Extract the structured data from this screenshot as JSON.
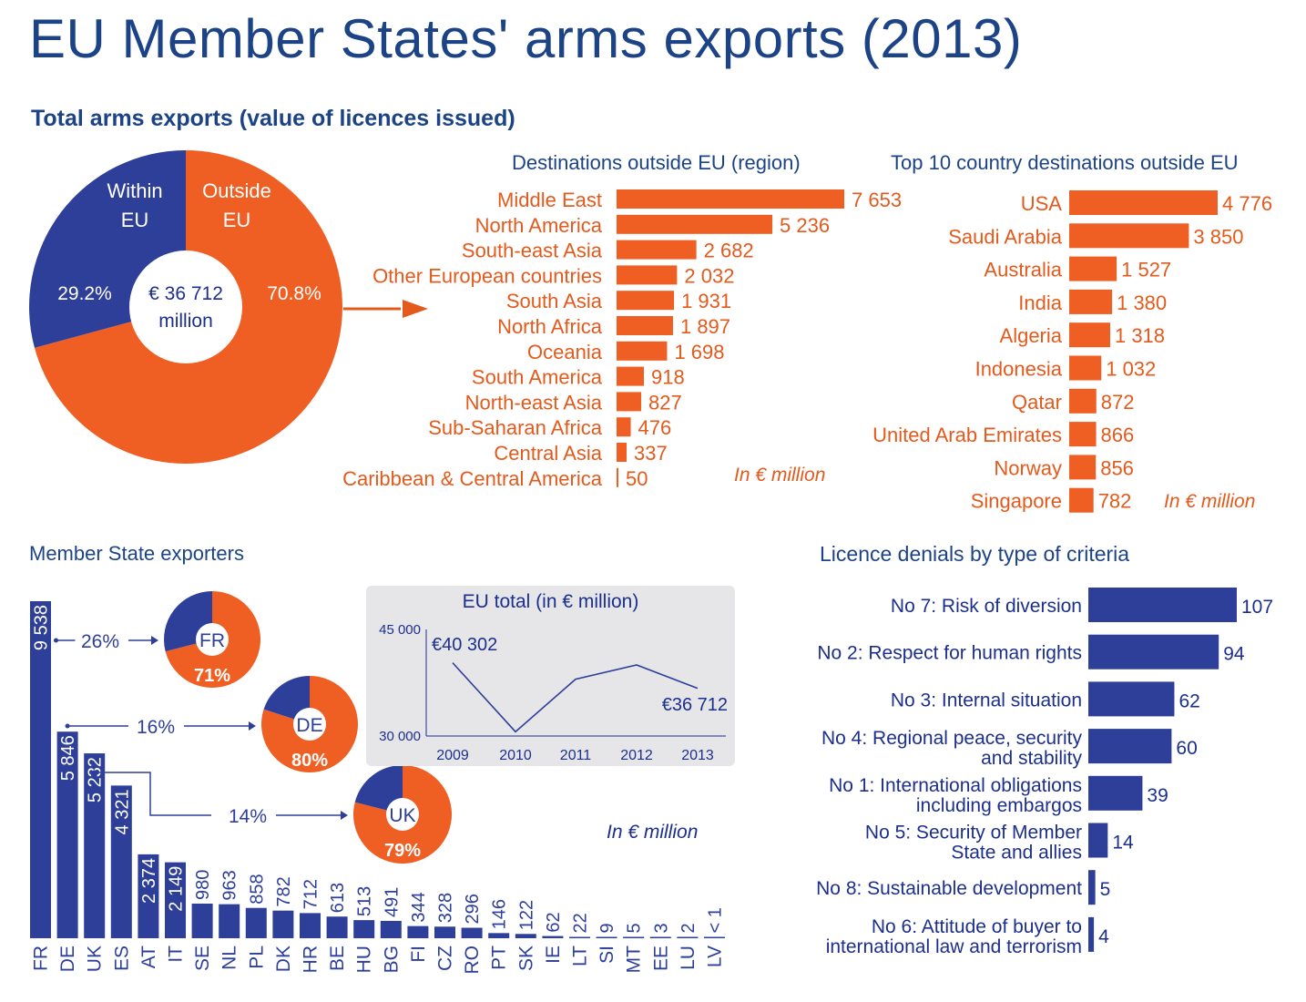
{
  "title": "EU Member States' arms exports (2013)",
  "subtitle": "Total arms exports (value of licences issued)",
  "colors": {
    "orange": "#ef5f23",
    "blue": "#2e3f99",
    "title_blue": "#1c4386",
    "orange_text": "#e35a1c",
    "panel_gray": "#e6e6e9"
  },
  "donut": {
    "center_line1": "€ 36 712",
    "center_line2": "million",
    "within_label_line1": "Within",
    "within_label_line2": "EU",
    "outside_label_line1": "Outside",
    "outside_label_line2": "EU",
    "within_pct_label": "29.2%",
    "outside_pct_label": "70.8%",
    "within_pct": 29.2,
    "outside_pct": 70.8
  },
  "chart_data": [
    {
      "id": "regions",
      "type": "bar",
      "orientation": "horizontal",
      "title": "Destinations outside EU (region)",
      "unit_note": "In € million",
      "categories": [
        "Middle East",
        "North America",
        "South-east Asia",
        "Other European countries",
        "South Asia",
        "North Africa",
        "Oceania",
        "South America",
        "North-east Asia",
        "Sub-Saharan Africa",
        "Central Asia",
        "Caribbean & Central America"
      ],
      "values": [
        7653,
        5236,
        2682,
        2032,
        1931,
        1897,
        1698,
        918,
        827,
        476,
        337,
        50
      ],
      "value_labels": [
        "7 653",
        "5 236",
        "2 682",
        "2 032",
        "1 931",
        "1 897",
        "1 698",
        "918",
        "827",
        "476",
        "337",
        "50"
      ],
      "xlim": [
        0,
        7653
      ]
    },
    {
      "id": "countries",
      "type": "bar",
      "orientation": "horizontal",
      "title": "Top 10 country destinations outside EU",
      "unit_note": "In € million",
      "categories": [
        "USA",
        "Saudi Arabia",
        "Australia",
        "India",
        "Algeria",
        "Indonesia",
        "Qatar",
        "United Arab Emirates",
        "Norway",
        "Singapore"
      ],
      "values": [
        4776,
        3850,
        1527,
        1380,
        1318,
        1032,
        872,
        866,
        856,
        782
      ],
      "value_labels": [
        "4 776",
        "3 850",
        "1 527",
        "1 380",
        "1 318",
        "1 032",
        "872",
        "866",
        "856",
        "782"
      ],
      "xlim": [
        0,
        4776
      ]
    },
    {
      "id": "member_states",
      "type": "bar",
      "orientation": "vertical",
      "title": "Member State exporters",
      "unit_note": "In € million",
      "categories": [
        "FR",
        "DE",
        "UK",
        "ES",
        "AT",
        "IT",
        "SE",
        "NL",
        "PL",
        "DK",
        "HR",
        "BE",
        "HU",
        "BG",
        "FI",
        "CZ",
        "RO",
        "PT",
        "SK",
        "IE",
        "LT",
        "SI",
        "MT",
        "EE",
        "LU",
        "LV"
      ],
      "values": [
        9538,
        5846,
        5232,
        4321,
        2374,
        2149,
        980,
        963,
        858,
        782,
        712,
        613,
        513,
        491,
        344,
        328,
        296,
        146,
        122,
        62,
        22,
        9,
        5,
        3,
        2,
        0.5
      ],
      "value_labels": [
        "9 538",
        "5 846",
        "5 232",
        "4 321",
        "2 374",
        "2 149",
        "980",
        "963",
        "858",
        "782",
        "712",
        "613",
        "513",
        "491",
        "344",
        "328",
        "296",
        "146",
        "122",
        "62",
        "22",
        "9",
        "5",
        "3",
        "2",
        "< 1"
      ],
      "ylim": [
        0,
        9538
      ],
      "callouts": [
        {
          "country": "FR",
          "share": "26%",
          "outside_pct": "71%",
          "outside_value": 71
        },
        {
          "country": "DE",
          "share": "16%",
          "outside_pct": "80%",
          "outside_value": 80
        },
        {
          "country": "UK",
          "share": "14%",
          "outside_pct": "79%",
          "outside_value": 79
        }
      ]
    },
    {
      "id": "eu_total",
      "type": "line",
      "title": "EU total (in € million)",
      "x": [
        "2009",
        "2010",
        "2011",
        "2012",
        "2013"
      ],
      "values": [
        40302,
        30600,
        38000,
        40000,
        36712
      ],
      "ylim": [
        30000,
        45000
      ],
      "ytick_labels": [
        "45 000",
        "30 000"
      ],
      "annotations": [
        "€40 302",
        "€36 712"
      ]
    },
    {
      "id": "denials",
      "type": "bar",
      "orientation": "horizontal",
      "title": "Licence denials by type of criteria",
      "categories": [
        [
          "No 7: Risk of diversion"
        ],
        [
          "No 2: Respect for human rights"
        ],
        [
          "No 3: Internal situation"
        ],
        [
          "No 4: Regional peace, security",
          "and stability"
        ],
        [
          "No 1: International obligations",
          "including embargos"
        ],
        [
          "No 5: Security of Member",
          "State and allies"
        ],
        [
          "No 8: Sustainable development"
        ],
        [
          "No 6: Attitude of buyer to",
          "international law and terrorism"
        ]
      ],
      "values": [
        107,
        94,
        62,
        60,
        39,
        14,
        5,
        4
      ],
      "value_labels": [
        "107",
        "94",
        "62",
        "60",
        "39",
        "14",
        "5",
        "4"
      ],
      "xlim": [
        0,
        107
      ]
    }
  ]
}
